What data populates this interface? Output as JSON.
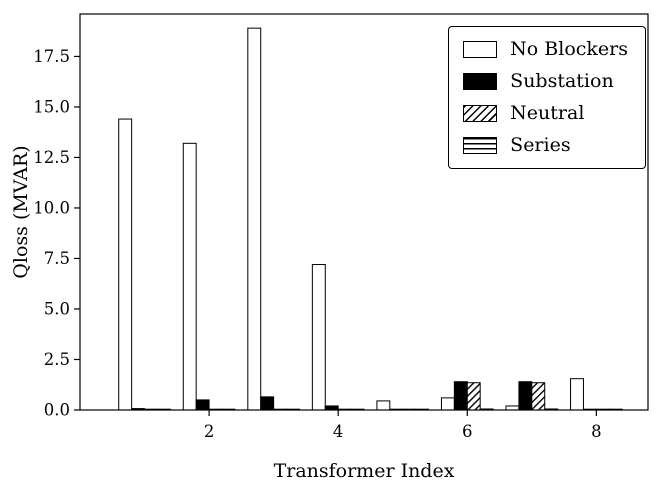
{
  "figure": {
    "background": "#ffffff",
    "stroke_color": "#000000"
  },
  "chart_data": {
    "type": "bar",
    "title": "",
    "xlabel": "Transformer Index",
    "ylabel": "Qloss (MVAR)",
    "categories": [
      1,
      2,
      3,
      4,
      5,
      6,
      7,
      8
    ],
    "xticks": [
      2,
      4,
      6,
      8
    ],
    "yticks": [
      "0.0",
      "2.5",
      "5.0",
      "7.5",
      "10.0",
      "12.5",
      "15.0",
      "17.5"
    ],
    "xlim": [
      0,
      8.8
    ],
    "ylim": [
      0,
      19.6
    ],
    "bar_width": 0.2,
    "grid": false,
    "legend_position": "upper right",
    "series": [
      {
        "name": "No Blockers",
        "style": "white",
        "values": [
          14.4,
          13.2,
          18.9,
          7.2,
          0.45,
          0.6,
          0.2,
          1.55
        ]
      },
      {
        "name": "Substation",
        "style": "black",
        "values": [
          0.07,
          0.5,
          0.65,
          0.2,
          0.04,
          1.4,
          1.4,
          0.04
        ]
      },
      {
        "name": "Neutral",
        "style": "diagonal-hatch",
        "values": [
          0.04,
          0.04,
          0.04,
          0.04,
          0.04,
          1.35,
          1.35,
          0.04
        ]
      },
      {
        "name": "Series",
        "style": "horizontal-hatch",
        "values": [
          0.04,
          0.04,
          0.04,
          0.04,
          0.04,
          0.05,
          0.05,
          0.04
        ]
      }
    ]
  }
}
